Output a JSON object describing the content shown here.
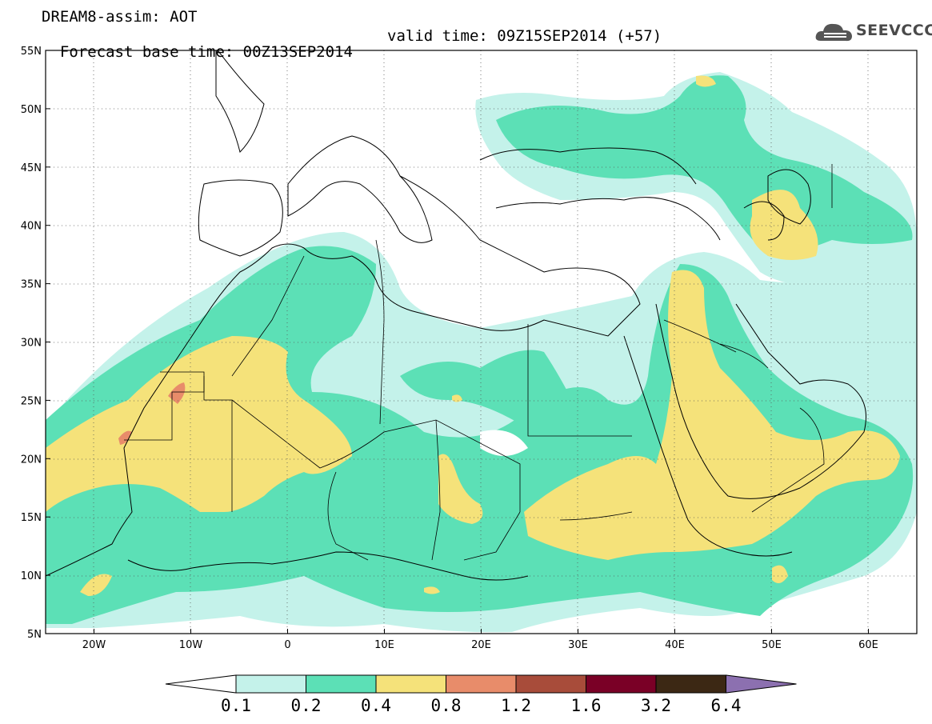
{
  "header": {
    "title_line1": "DREAM8-assim: AOT",
    "title_line2": "Forecast base time: 00Z13SEP2014",
    "valid_time": "valid time: 09Z15SEP2014 (+57)",
    "logo_text": "SEEVCCC"
  },
  "map": {
    "lon_range": [
      -25,
      65
    ],
    "lat_range": [
      5,
      55
    ],
    "x_tick_labels": [
      "20W",
      "10W",
      "0",
      "10E",
      "20E",
      "30E",
      "40E",
      "50E",
      "60E"
    ],
    "y_tick_labels": [
      "55N",
      "50N",
      "45N",
      "40N",
      "35N",
      "30N",
      "25N",
      "20N",
      "15N",
      "10N",
      "5N"
    ],
    "grid": "dotted",
    "variable": "AOT"
  },
  "colorbar": {
    "labels": [
      "0.1",
      "0.2",
      "0.4",
      "0.8",
      "1.2",
      "1.6",
      "3.2",
      "6.4"
    ],
    "colors": [
      "#ffffff",
      "#c4f2ea",
      "#5ce0b6",
      "#f5e27a",
      "#e88c6a",
      "#a84c3a",
      "#7a0026",
      "#3c2814",
      "#8c70b0"
    ]
  },
  "colors": {
    "level_0_1": "#c4f2ea",
    "level_0_2": "#5ce0b6",
    "level_0_4": "#f5e27a",
    "level_0_8": "#e88c6a"
  }
}
